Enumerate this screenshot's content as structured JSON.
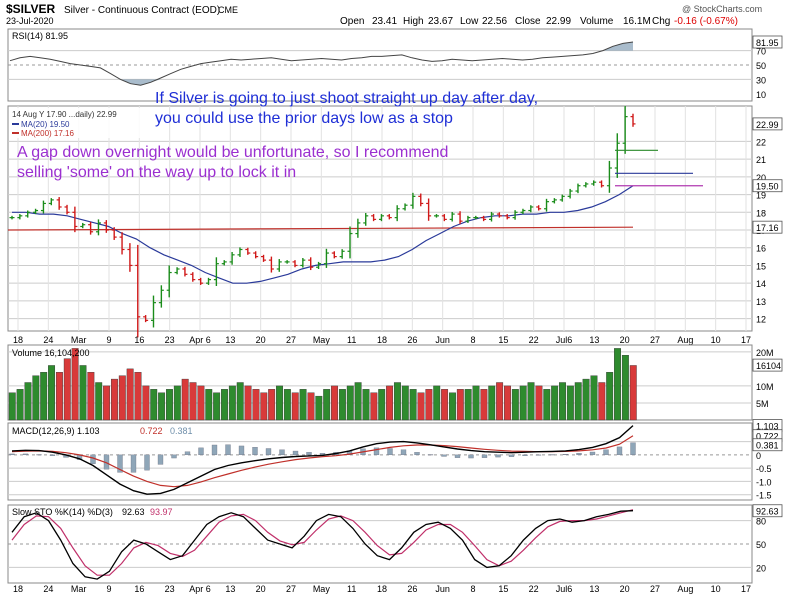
{
  "header": {
    "symbol": "$SILVER",
    "description": "Silver - Continuous Contract (EOD)",
    "exchange": "CME",
    "date": "23-Jul-2020",
    "open_label": "Open",
    "open": "23.41",
    "high_label": "High",
    "high": "23.67",
    "low_label": "Low",
    "low": "22.56",
    "close_label": "Close",
    "close": "22.99",
    "volume_label": "Volume",
    "volume": "16.1M",
    "change_label": "Chg",
    "change": "-0.16 (-0.67%)",
    "watermark": "@ StockCharts.com"
  },
  "annotations": {
    "line1": "If Silver is going to just shoot straight up day after day,",
    "line2": "you could use the prior days low as a stop",
    "line3": "A gap down overnight would be unfortunate, so I recommend",
    "line4": "selling 'some' on the way up to lock it in",
    "color_blue": "#1f2fd6",
    "color_purple": "#9b2fd0"
  },
  "chart_data": [
    {
      "type": "line",
      "panel": "RSI",
      "legend": "RSI(14) 81.95",
      "ylim": [
        0,
        100
      ],
      "yticks": [
        "81.95",
        "70",
        "50",
        "30",
        "10"
      ],
      "series": [
        {
          "name": "RSI(14)",
          "values": [
            56,
            60,
            62,
            60,
            58,
            55,
            52,
            50,
            48,
            46,
            38,
            30,
            24,
            22,
            26,
            32,
            38,
            44,
            48,
            52,
            54,
            56,
            58,
            57,
            58,
            59,
            60,
            58,
            56,
            57,
            58,
            59,
            58,
            57,
            59,
            60,
            62,
            62,
            63,
            64,
            60,
            57,
            55,
            56,
            58,
            57,
            56,
            57,
            58,
            59,
            58,
            57,
            58,
            60,
            61,
            62,
            63,
            64,
            66,
            70,
            76,
            80,
            81.95
          ]
        }
      ]
    },
    {
      "type": "candlestick",
      "panel": "price",
      "legend": [
        "14 Aug Y 17.90 ...daily) 22.99",
        "MA(20) 19.50",
        "MA(200) 17.16"
      ],
      "ylim": [
        11.3,
        24
      ],
      "yticks": [
        12,
        13,
        14,
        15,
        16,
        17,
        18,
        19,
        20,
        21,
        22
      ],
      "last_labels": [
        "22.99",
        "19.50",
        "17.16"
      ],
      "xticks": [
        "18",
        "24",
        "Mar",
        "9",
        "16",
        "23",
        "Apr 6",
        "13",
        "20",
        "27",
        "May",
        "11",
        "18",
        "26",
        "Jun",
        "8",
        "15",
        "22",
        "Jul6",
        "13",
        "20",
        "27",
        "Aug",
        "10",
        "17"
      ],
      "close": [
        17.7,
        17.8,
        18.0,
        18.1,
        18.5,
        18.7,
        18.3,
        18.0,
        17.2,
        17.3,
        16.9,
        17.4,
        17.0,
        16.6,
        15.9,
        15.0,
        12.1,
        11.9,
        12.9,
        13.6,
        14.6,
        14.8,
        14.5,
        14.2,
        14.0,
        14.2,
        15.1,
        15.2,
        15.6,
        15.9,
        15.7,
        15.5,
        15.3,
        14.8,
        15.2,
        15.2,
        15.0,
        15.3,
        14.9,
        15.1,
        15.7,
        15.5,
        15.8,
        16.8,
        17.4,
        17.8,
        17.6,
        17.8,
        17.7,
        18.2,
        18.4,
        18.9,
        18.5,
        17.8,
        17.8,
        17.6,
        17.9,
        17.5,
        17.7,
        17.7,
        17.6,
        17.9,
        17.8,
        17.7,
        18.0,
        18.1,
        18.3,
        18.2,
        18.6,
        18.7,
        18.9,
        19.2,
        19.5,
        19.6,
        19.7,
        19.5,
        20.5,
        21.9,
        23.4,
        22.99
      ],
      "ma20": [
        18.0,
        18.0,
        17.9,
        17.9,
        17.8,
        17.6,
        17.4,
        17.2,
        16.8,
        16.5,
        16.0,
        15.6,
        15.3,
        15.0,
        14.6,
        14.3,
        14.0,
        14.0,
        14.1,
        14.3,
        14.5,
        14.8,
        15.0,
        15.1,
        15.2,
        15.2,
        15.2,
        15.3,
        15.5,
        15.9,
        16.4,
        16.8,
        17.2,
        17.5,
        17.7,
        17.8,
        17.8,
        17.9,
        17.9,
        18.0,
        18.0,
        18.1,
        18.3,
        18.6,
        19.0,
        19.5
      ],
      "ma200": [
        17.16
      ],
      "levels": [
        {
          "name": "green stop line",
          "value": 21.5
        },
        {
          "name": "blue stop line",
          "value": 20.2
        },
        {
          "name": "purple stop line",
          "value": 19.5
        }
      ]
    },
    {
      "type": "bar",
      "panel": "volume",
      "legend": "Volume 16,104,200",
      "ylim": [
        0,
        22
      ],
      "yticks": [
        "20M",
        "16104",
        "10M",
        "5M"
      ],
      "values": [
        8,
        9,
        11,
        13,
        14,
        16,
        14,
        18,
        21,
        16,
        14,
        11,
        10,
        12,
        13,
        15,
        14,
        10,
        9,
        8,
        9,
        10,
        12,
        11,
        10,
        9,
        8,
        9,
        10,
        11,
        10,
        9,
        8,
        9,
        10,
        9,
        8,
        9,
        8,
        7,
        9,
        10,
        9,
        10,
        11,
        9,
        8,
        9,
        10,
        11,
        10,
        9,
        8,
        9,
        10,
        9,
        8,
        9,
        9,
        10,
        9,
        10,
        11,
        10,
        9,
        10,
        11,
        10,
        9,
        10,
        11,
        10,
        11,
        12,
        13,
        11,
        14,
        21,
        19,
        16
      ]
    },
    {
      "type": "line",
      "panel": "MACD",
      "legend": [
        "MACD(12,26,9) 1.103",
        "0.722",
        "0.381"
      ],
      "ylim": [
        -1.7,
        1.2
      ],
      "yticks": [
        "1.103",
        "0.722",
        "0.381",
        "0",
        "-0.5",
        "-1.0",
        "-1.5"
      ],
      "series": [
        {
          "name": "MACD",
          "values": [
            0.15,
            0.17,
            0.16,
            0.1,
            0.0,
            -0.15,
            -0.4,
            -0.75,
            -1.1,
            -1.35,
            -1.48,
            -1.45,
            -1.3,
            -1.05,
            -0.8,
            -0.55,
            -0.4,
            -0.3,
            -0.22,
            -0.15,
            -0.1,
            -0.06,
            -0.04,
            -0.02,
            0.05,
            0.15,
            0.3,
            0.42,
            0.48,
            0.5,
            0.45,
            0.38,
            0.3,
            0.22,
            0.16,
            0.12,
            0.1,
            0.08,
            0.1,
            0.12,
            0.13,
            0.15,
            0.2,
            0.28,
            0.42,
            0.65,
            1.103
          ]
        },
        {
          "name": "Signal",
          "values": [
            0.12,
            0.14,
            0.15,
            0.13,
            0.08,
            0.0,
            -0.12,
            -0.3,
            -0.55,
            -0.8,
            -1.0,
            -1.15,
            -1.2,
            -1.15,
            -1.02,
            -0.86,
            -0.72,
            -0.58,
            -0.46,
            -0.35,
            -0.26,
            -0.18,
            -0.12,
            -0.07,
            -0.03,
            0.03,
            0.11,
            0.2,
            0.28,
            0.34,
            0.37,
            0.37,
            0.35,
            0.31,
            0.26,
            0.21,
            0.17,
            0.14,
            0.13,
            0.12,
            0.12,
            0.13,
            0.15,
            0.19,
            0.26,
            0.4,
            0.722
          ]
        }
      ]
    },
    {
      "type": "line",
      "panel": "Slow STO",
      "legend": [
        "Slow STO %K(14) %D(3)",
        "92.63",
        "93.97"
      ],
      "ylim": [
        0,
        100
      ],
      "yticks": [
        "92.63",
        "80",
        "50",
        "20"
      ],
      "series": [
        {
          "name": "%K",
          "values": [
            65,
            85,
            90,
            80,
            55,
            25,
            8,
            5,
            15,
            40,
            55,
            50,
            40,
            30,
            35,
            55,
            75,
            85,
            90,
            85,
            70,
            55,
            50,
            45,
            60,
            80,
            88,
            85,
            70,
            50,
            35,
            30,
            45,
            65,
            75,
            78,
            70,
            55,
            30,
            20,
            22,
            35,
            55,
            70,
            80,
            82,
            78,
            80,
            85,
            88,
            92,
            92.63
          ]
        },
        {
          "name": "%D",
          "values": [
            55,
            75,
            86,
            85,
            70,
            45,
            22,
            10,
            10,
            25,
            45,
            52,
            48,
            38,
            34,
            42,
            60,
            78,
            86,
            88,
            80,
            65,
            54,
            49,
            52,
            68,
            82,
            86,
            80,
            65,
            48,
            36,
            38,
            52,
            68,
            75,
            75,
            65,
            48,
            30,
            22,
            28,
            42,
            58,
            72,
            79,
            80,
            80,
            82,
            86,
            90,
            93.97
          ]
        }
      ]
    }
  ]
}
